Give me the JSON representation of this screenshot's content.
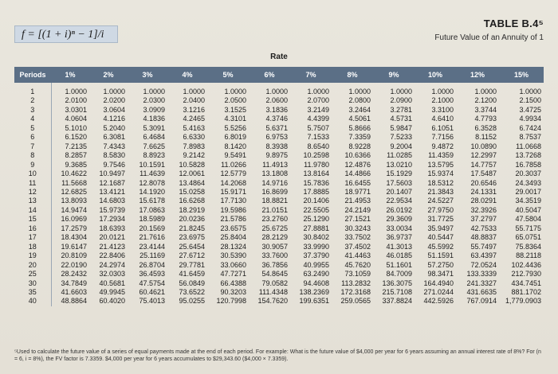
{
  "formula": "f = [(1 + i)ⁿ − 1]/i",
  "table_id": "TABLE B.4⁵",
  "table_title": "Future Value of an Annuity of 1",
  "rate_label": "Rate",
  "columns": [
    "Periods",
    "1%",
    "2%",
    "3%",
    "4%",
    "5%",
    "6%",
    "7%",
    "8%",
    "9%",
    "10%",
    "12%",
    "15%"
  ],
  "rows": [
    [
      "1",
      "1.0000",
      "1.0000",
      "1.0000",
      "1.0000",
      "1.0000",
      "1.0000",
      "1.0000",
      "1.0000",
      "1.0000",
      "1.0000",
      "1.0000",
      "1.0000"
    ],
    [
      "2",
      "2.0100",
      "2.0200",
      "2.0300",
      "2.0400",
      "2.0500",
      "2.0600",
      "2.0700",
      "2.0800",
      "2.0900",
      "2.1000",
      "2.1200",
      "2.1500"
    ],
    [
      "3",
      "3.0301",
      "3.0604",
      "3.0909",
      "3.1216",
      "3.1525",
      "3.1836",
      "3.2149",
      "3.2464",
      "3.2781",
      "3.3100",
      "3.3744",
      "3.4725"
    ],
    [
      "4",
      "4.0604",
      "4.1216",
      "4.1836",
      "4.2465",
      "4.3101",
      "4.3746",
      "4.4399",
      "4.5061",
      "4.5731",
      "4.6410",
      "4.7793",
      "4.9934"
    ],
    [
      "5",
      "5.1010",
      "5.2040",
      "5.3091",
      "5.4163",
      "5.5256",
      "5.6371",
      "5.7507",
      "5.8666",
      "5.9847",
      "6.1051",
      "6.3528",
      "6.7424"
    ],
    [
      "6",
      "6.1520",
      "6.3081",
      "6.4684",
      "6.6330",
      "6.8019",
      "6.9753",
      "7.1533",
      "7.3359",
      "7.5233",
      "7.7156",
      "8.1152",
      "8.7537"
    ],
    [
      "7",
      "7.2135",
      "7.4343",
      "7.6625",
      "7.8983",
      "8.1420",
      "8.3938",
      "8.6540",
      "8.9228",
      "9.2004",
      "9.4872",
      "10.0890",
      "11.0668"
    ],
    [
      "8",
      "8.2857",
      "8.5830",
      "8.8923",
      "9.2142",
      "9.5491",
      "9.8975",
      "10.2598",
      "10.6366",
      "11.0285",
      "11.4359",
      "12.2997",
      "13.7268"
    ],
    [
      "9",
      "9.3685",
      "9.7546",
      "10.1591",
      "10.5828",
      "11.0266",
      "11.4913",
      "11.9780",
      "12.4876",
      "13.0210",
      "13.5795",
      "14.7757",
      "16.7858"
    ],
    [
      "10",
      "10.4622",
      "10.9497",
      "11.4639",
      "12.0061",
      "12.5779",
      "13.1808",
      "13.8164",
      "14.4866",
      "15.1929",
      "15.9374",
      "17.5487",
      "20.3037"
    ],
    [
      "11",
      "11.5668",
      "12.1687",
      "12.8078",
      "13.4864",
      "14.2068",
      "14.9716",
      "15.7836",
      "16.6455",
      "17.5603",
      "18.5312",
      "20.6546",
      "24.3493"
    ],
    [
      "12",
      "12.6825",
      "13.4121",
      "14.1920",
      "15.0258",
      "15.9171",
      "16.8699",
      "17.8885",
      "18.9771",
      "20.1407",
      "21.3843",
      "24.1331",
      "29.0017"
    ],
    [
      "13",
      "13.8093",
      "14.6803",
      "15.6178",
      "16.6268",
      "17.7130",
      "18.8821",
      "20.1406",
      "21.4953",
      "22.9534",
      "24.5227",
      "28.0291",
      "34.3519"
    ],
    [
      "14",
      "14.9474",
      "15.9739",
      "17.0863",
      "18.2919",
      "19.5986",
      "21.0151",
      "22.5505",
      "24.2149",
      "26.0192",
      "27.9750",
      "32.3926",
      "40.5047"
    ],
    [
      "15",
      "16.0969",
      "17.2934",
      "18.5989",
      "20.0236",
      "21.5786",
      "23.2760",
      "25.1290",
      "27.1521",
      "29.3609",
      "31.7725",
      "37.2797",
      "47.5804"
    ],
    [
      "16",
      "17.2579",
      "18.6393",
      "20.1569",
      "21.8245",
      "23.6575",
      "25.6725",
      "27.8881",
      "30.3243",
      "33.0034",
      "35.9497",
      "42.7533",
      "55.7175"
    ],
    [
      "17",
      "18.4304",
      "20.0121",
      "21.7616",
      "23.6975",
      "25.8404",
      "28.2129",
      "30.8402",
      "33.7502",
      "36.9737",
      "40.5447",
      "48.8837",
      "65.0751"
    ],
    [
      "18",
      "19.6147",
      "21.4123",
      "23.4144",
      "25.6454",
      "28.1324",
      "30.9057",
      "33.9990",
      "37.4502",
      "41.3013",
      "45.5992",
      "55.7497",
      "75.8364"
    ],
    [
      "19",
      "20.8109",
      "22.8406",
      "25.1169",
      "27.6712",
      "30.5390",
      "33.7600",
      "37.3790",
      "41.4463",
      "46.0185",
      "51.1591",
      "63.4397",
      "88.2118"
    ],
    [
      "20",
      "22.0190",
      "24.2974",
      "26.8704",
      "29.7781",
      "33.0660",
      "36.7856",
      "40.9955",
      "45.7620",
      "51.1601",
      "57.2750",
      "72.0524",
      "102.4436"
    ],
    [
      "25",
      "28.2432",
      "32.0303",
      "36.4593",
      "41.6459",
      "47.7271",
      "54.8645",
      "63.2490",
      "73.1059",
      "84.7009",
      "98.3471",
      "133.3339",
      "212.7930"
    ],
    [
      "30",
      "34.7849",
      "40.5681",
      "47.5754",
      "56.0849",
      "66.4388",
      "79.0582",
      "94.4608",
      "113.2832",
      "136.3075",
      "164.4940",
      "241.3327",
      "434.7451"
    ],
    [
      "35",
      "41.6603",
      "49.9945",
      "60.4621",
      "73.6522",
      "90.3203",
      "111.4348",
      "138.2369",
      "172.3168",
      "215.7108",
      "271.0244",
      "431.6635",
      "881.1702"
    ],
    [
      "40",
      "48.8864",
      "60.4020",
      "75.4013",
      "95.0255",
      "120.7998",
      "154.7620",
      "199.6351",
      "259.0565",
      "337.8824",
      "442.5926",
      "767.0914",
      "1,779.0903"
    ]
  ],
  "footnote": "⁵Used to calculate the future value of a series of equal payments made at the end of each period. For example: What is the future value of $4,000 per year for 6 years assuming an annual interest rate of 8%? For (n = 6, i = 8%), the FV factor is 7.3359. $4,000 per year for 6 years accumulates to $29,343.60 ($4,000 × 7.3359)."
}
